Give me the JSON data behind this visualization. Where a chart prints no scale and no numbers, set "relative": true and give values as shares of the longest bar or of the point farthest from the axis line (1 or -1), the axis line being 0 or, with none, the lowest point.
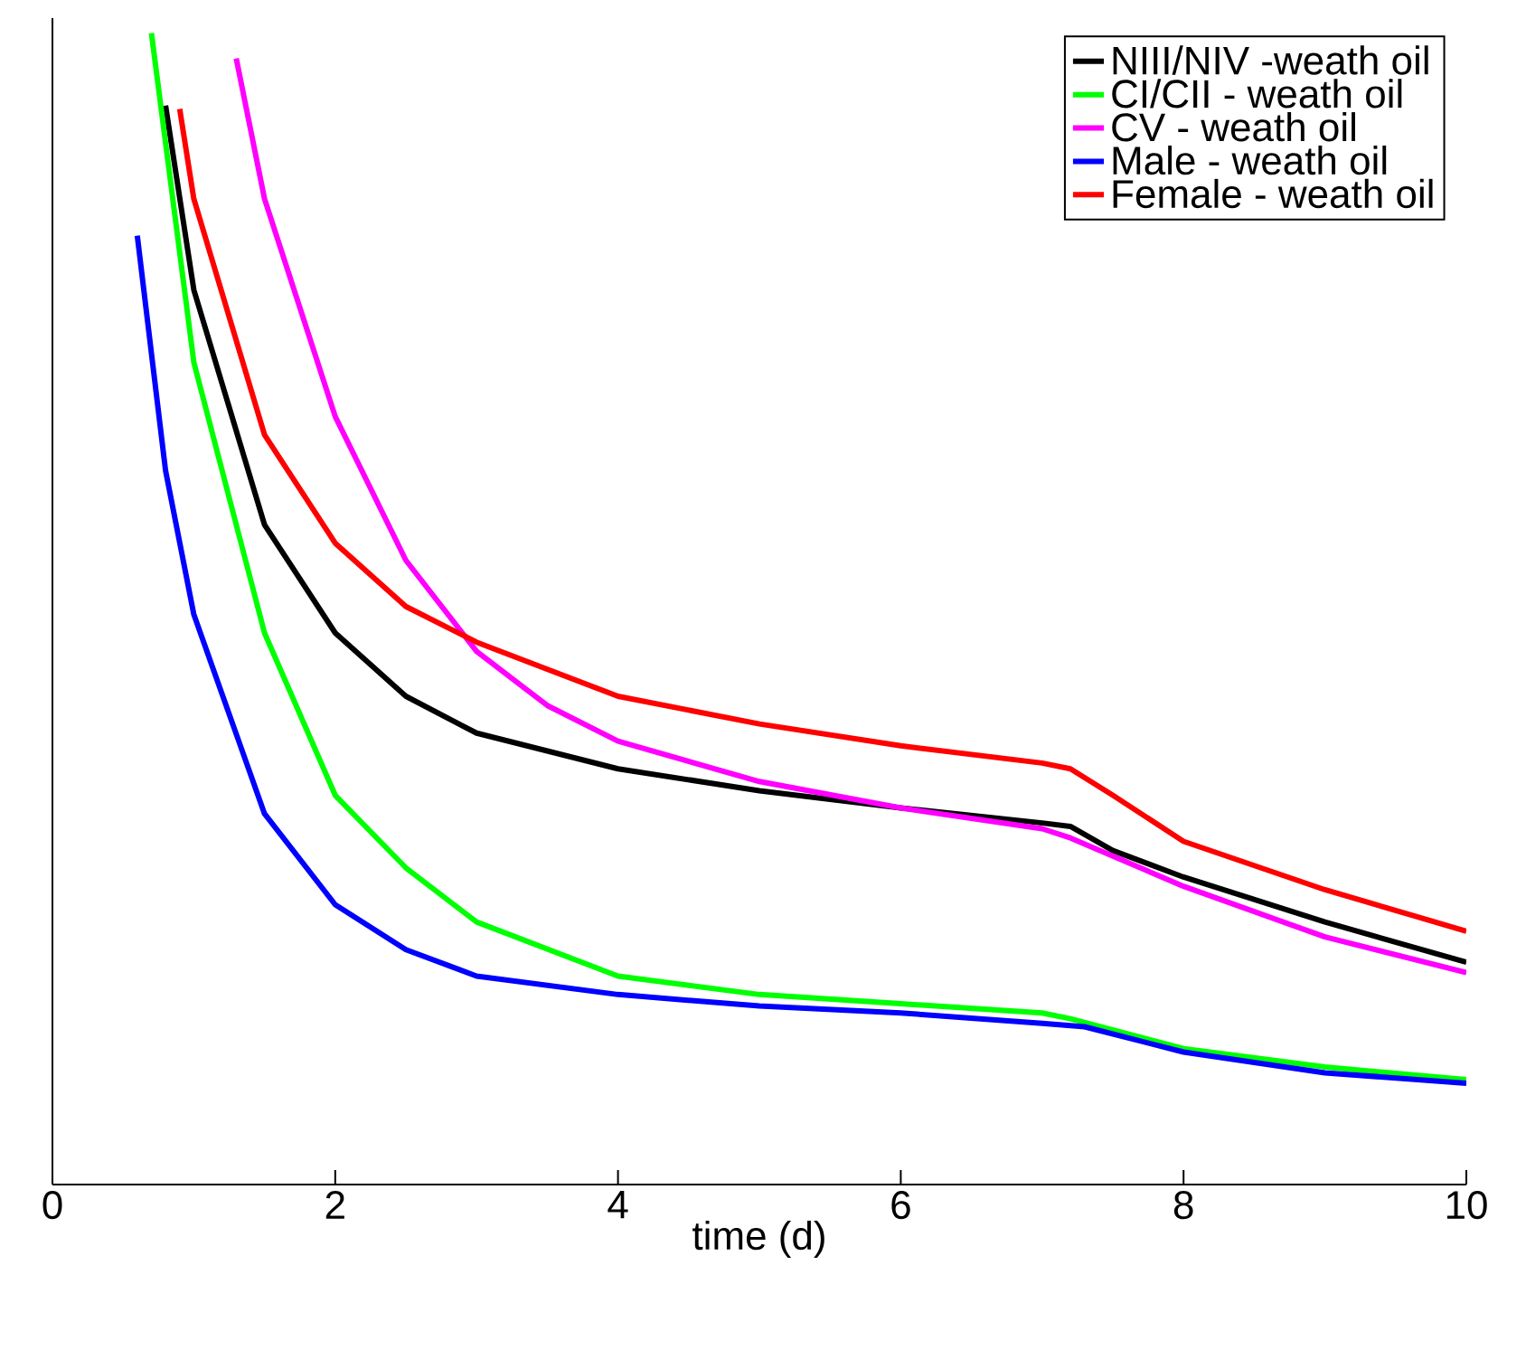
{
  "chart_data": {
    "type": "line",
    "xlabel": "time (d)",
    "relative": true,
    "xlim": [
      0,
      10
    ],
    "xticks": [
      0,
      2,
      4,
      6,
      8,
      10
    ],
    "legend": "top right",
    "grid": false,
    "marker": "none",
    "line_style": "solid",
    "series": [
      {
        "name": "NIII/NIV -weath oil",
        "color": "#000000",
        "x": [
          0.8,
          1,
          1.5,
          2,
          2.5,
          3,
          4,
          5,
          6,
          7,
          7.2,
          7.5,
          8,
          9,
          10
        ],
        "values": [
          0.937,
          0.777,
          0.573,
          0.479,
          0.424,
          0.392,
          0.361,
          0.342,
          0.327,
          0.314,
          0.311,
          0.29,
          0.267,
          0.228,
          0.193
        ]
      },
      {
        "name": "CI/CII - weath oil",
        "color": "#00ff00",
        "x": [
          0.7,
          1,
          1.5,
          2,
          2.5,
          3,
          4,
          5,
          6,
          7,
          7.2,
          8,
          9,
          10
        ],
        "values": [
          1.0,
          0.714,
          0.479,
          0.338,
          0.275,
          0.228,
          0.181,
          0.165,
          0.157,
          0.149,
          0.144,
          0.118,
          0.102,
          0.091
        ]
      },
      {
        "name": "CV - weath oil",
        "color": "#ff00ff",
        "x": [
          1.3,
          1.5,
          2,
          2.5,
          3,
          3.5,
          4,
          5,
          6,
          7,
          7.2,
          8,
          9,
          10
        ],
        "values": [
          0.978,
          0.856,
          0.667,
          0.542,
          0.463,
          0.416,
          0.385,
          0.35,
          0.327,
          0.309,
          0.301,
          0.259,
          0.215,
          0.184
        ]
      },
      {
        "name": "Male - weath oil",
        "color": "#0000ff",
        "x": [
          0.6,
          0.8,
          1,
          1.5,
          2,
          2.5,
          3,
          4,
          5,
          6,
          7,
          7.3,
          8,
          9,
          10
        ],
        "values": [
          0.824,
          0.62,
          0.495,
          0.322,
          0.243,
          0.204,
          0.181,
          0.165,
          0.155,
          0.149,
          0.14,
          0.137,
          0.115,
          0.097,
          0.088
        ]
      },
      {
        "name": "Female - weath oil",
        "color": "#ff0000",
        "x": [
          0.9,
          1,
          1.5,
          2,
          2.5,
          3,
          4,
          5,
          6,
          7,
          7.2,
          7.5,
          8,
          9,
          10
        ],
        "values": [
          0.934,
          0.856,
          0.651,
          0.557,
          0.502,
          0.471,
          0.424,
          0.4,
          0.381,
          0.366,
          0.361,
          0.338,
          0.298,
          0.256,
          0.22
        ]
      }
    ]
  }
}
